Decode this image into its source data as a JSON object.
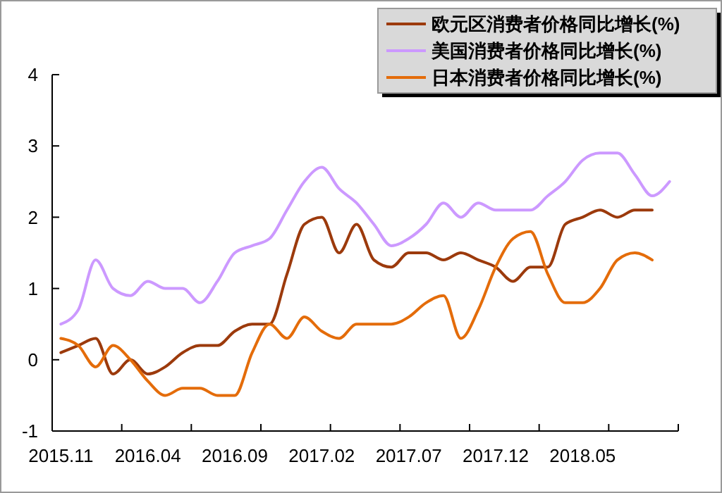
{
  "chart_data": {
    "type": "line",
    "categories": [
      "2015.11",
      null,
      null,
      null,
      null,
      "2016.04",
      null,
      null,
      null,
      null,
      "2016.09",
      null,
      null,
      null,
      null,
      "2017.02",
      null,
      null,
      null,
      null,
      "2017.07",
      null,
      null,
      null,
      null,
      "2017.12",
      null,
      null,
      null,
      null,
      "2018.05",
      null,
      null,
      null,
      null,
      null
    ],
    "series": [
      {
        "name": "欧元区消费者价格同比增长(%)",
        "color": "#9c3a0c",
        "values": [
          0.1,
          0.2,
          0.3,
          -0.2,
          0.0,
          -0.2,
          -0.1,
          0.1,
          0.2,
          0.2,
          0.4,
          0.5,
          0.5,
          1.2,
          1.9,
          2.0,
          1.5,
          1.9,
          1.4,
          1.3,
          1.5,
          1.5,
          1.4,
          1.5,
          1.4,
          1.3,
          1.1,
          1.3,
          1.3,
          1.9,
          2.0,
          2.1,
          2.0,
          2.1,
          2.1,
          null
        ]
      },
      {
        "name": "美国消费者价格同比增长(%)",
        "color": "#cc99ff",
        "values": [
          0.5,
          0.7,
          1.4,
          1.0,
          0.9,
          1.1,
          1.0,
          1.0,
          0.8,
          1.1,
          1.5,
          1.6,
          1.7,
          2.1,
          2.5,
          2.7,
          2.4,
          2.2,
          1.9,
          1.6,
          1.7,
          1.9,
          2.2,
          2.0,
          2.2,
          2.1,
          2.1,
          2.1,
          2.3,
          2.5,
          2.8,
          2.9,
          2.9,
          2.6,
          2.3,
          2.5
        ]
      },
      {
        "name": "日本消费者价格同比增长(%)",
        "color": "#e46c0a",
        "values": [
          0.3,
          0.2,
          -0.1,
          0.2,
          0.0,
          -0.3,
          -0.5,
          -0.4,
          -0.4,
          -0.5,
          -0.5,
          0.1,
          0.5,
          0.3,
          0.6,
          0.4,
          0.3,
          0.5,
          0.5,
          0.5,
          0.6,
          0.8,
          0.9,
          0.3,
          0.7,
          1.3,
          1.7,
          1.8,
          1.2,
          0.8,
          0.8,
          1.0,
          1.4,
          1.5,
          1.4,
          null
        ]
      }
    ],
    "ylim": [
      -1,
      4
    ],
    "yticks": [
      -1,
      0,
      1,
      2,
      3,
      4
    ],
    "grid": false,
    "legend": "top right",
    "line_style": "solid",
    "marker": "none"
  }
}
